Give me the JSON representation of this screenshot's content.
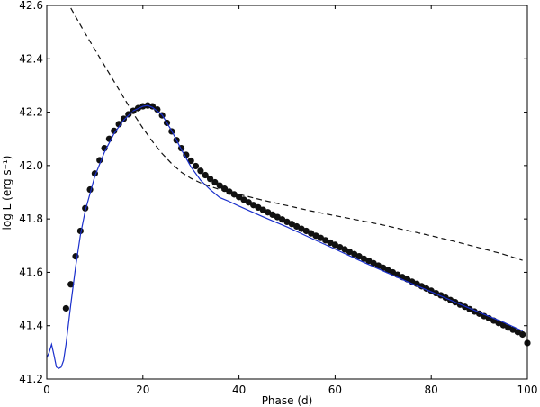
{
  "chart_data": {
    "type": "line",
    "title": "",
    "xlabel": "Phase (d)",
    "ylabel": "log L (erg s⁻¹)",
    "xlim": [
      0,
      100
    ],
    "ylim": [
      41.2,
      42.6
    ],
    "xticks": [
      0,
      20,
      40,
      60,
      80,
      100
    ],
    "xtick_labels": [
      "0",
      "20",
      "40",
      "60",
      "80",
      "100"
    ],
    "yticks": [
      41.2,
      41.4,
      41.6,
      41.8,
      42.0,
      42.2,
      42.4,
      42.6
    ],
    "ytick_labels": [
      "41.2",
      "41.4",
      "41.6",
      "41.8",
      "42.0",
      "42.2",
      "42.4",
      "42.6"
    ],
    "grid": false,
    "legend": false,
    "series": [
      {
        "style": "markers",
        "color": "#111111",
        "x": [
          4,
          5,
          6,
          7,
          8,
          9,
          10,
          11,
          12,
          13,
          14,
          15,
          16,
          17,
          18,
          19,
          20,
          21,
          22,
          23,
          24,
          25,
          26,
          27,
          28,
          29,
          30,
          31,
          32,
          33,
          34,
          35,
          36,
          37,
          38,
          39,
          40,
          41,
          42,
          43,
          44,
          45,
          46,
          47,
          48,
          49,
          50,
          51,
          52,
          53,
          54,
          55,
          56,
          57,
          58,
          59,
          60,
          61,
          62,
          63,
          64,
          65,
          66,
          67,
          68,
          69,
          70,
          71,
          72,
          73,
          74,
          75,
          76,
          77,
          78,
          79,
          80,
          81,
          82,
          83,
          84,
          85,
          86,
          87,
          88,
          89,
          90,
          91,
          92,
          93,
          94,
          95,
          96,
          97,
          98,
          99,
          100
        ],
        "y": [
          41.465,
          41.555,
          41.66,
          41.755,
          41.84,
          41.91,
          41.97,
          42.02,
          42.065,
          42.1,
          42.13,
          42.155,
          42.175,
          42.192,
          42.205,
          42.215,
          42.222,
          42.225,
          42.222,
          42.21,
          42.188,
          42.16,
          42.128,
          42.095,
          42.065,
          42.04,
          42.018,
          41.998,
          41.98,
          41.964,
          41.95,
          41.937,
          41.925,
          41.913,
          41.902,
          41.892,
          41.882,
          41.872,
          41.862,
          41.852,
          41.843,
          41.834,
          41.825,
          41.816,
          41.807,
          41.798,
          41.789,
          41.781,
          41.772,
          41.763,
          41.755,
          41.746,
          41.737,
          41.729,
          41.72,
          41.711,
          41.703,
          41.694,
          41.686,
          41.677,
          41.668,
          41.66,
          41.651,
          41.643,
          41.634,
          41.625,
          41.617,
          41.608,
          41.6,
          41.591,
          41.582,
          41.574,
          41.565,
          41.557,
          41.548,
          41.539,
          41.531,
          41.522,
          41.514,
          41.505,
          41.496,
          41.488,
          41.479,
          41.471,
          41.462,
          41.453,
          41.445,
          41.436,
          41.428,
          41.419,
          41.41,
          41.402,
          41.393,
          41.385,
          41.376,
          41.367,
          41.335
        ]
      },
      {
        "style": "solid",
        "color": "#1a2fcc",
        "x": [
          0,
          0.5,
          1,
          1.5,
          2,
          2.5,
          3,
          3.5,
          4,
          5,
          6,
          7,
          8,
          10,
          12,
          14,
          16,
          18,
          20,
          21,
          22,
          24,
          26,
          28,
          30,
          32,
          34,
          36,
          38,
          40,
          45,
          50,
          55,
          60,
          65,
          70,
          75,
          80,
          85,
          90,
          95,
          99
        ],
        "y": [
          41.28,
          41.3,
          41.33,
          41.29,
          41.245,
          41.24,
          41.245,
          41.27,
          41.33,
          41.48,
          41.62,
          41.74,
          41.83,
          41.96,
          42.05,
          42.12,
          42.17,
          42.205,
          42.222,
          42.225,
          42.218,
          42.19,
          42.13,
          42.06,
          41.995,
          41.945,
          41.91,
          41.88,
          41.865,
          41.848,
          41.808,
          41.77,
          41.728,
          41.687,
          41.645,
          41.605,
          41.565,
          41.527,
          41.488,
          41.45,
          41.413,
          41.38
        ]
      },
      {
        "style": "dashed",
        "color": "#111111",
        "x": [
          5,
          8,
          10,
          12,
          14,
          16,
          18,
          20,
          22,
          24,
          26,
          28,
          30,
          32,
          34,
          36,
          38,
          40,
          45,
          50,
          55,
          60,
          65,
          70,
          75,
          80,
          85,
          90,
          95,
          99
        ],
        "y": [
          42.59,
          42.495,
          42.435,
          42.375,
          42.315,
          42.255,
          42.195,
          42.14,
          42.09,
          42.045,
          42.007,
          41.975,
          41.952,
          41.935,
          41.922,
          41.91,
          41.9,
          41.892,
          41.87,
          41.85,
          41.83,
          41.812,
          41.795,
          41.777,
          41.757,
          41.737,
          41.715,
          41.692,
          41.668,
          41.645
        ]
      }
    ]
  }
}
